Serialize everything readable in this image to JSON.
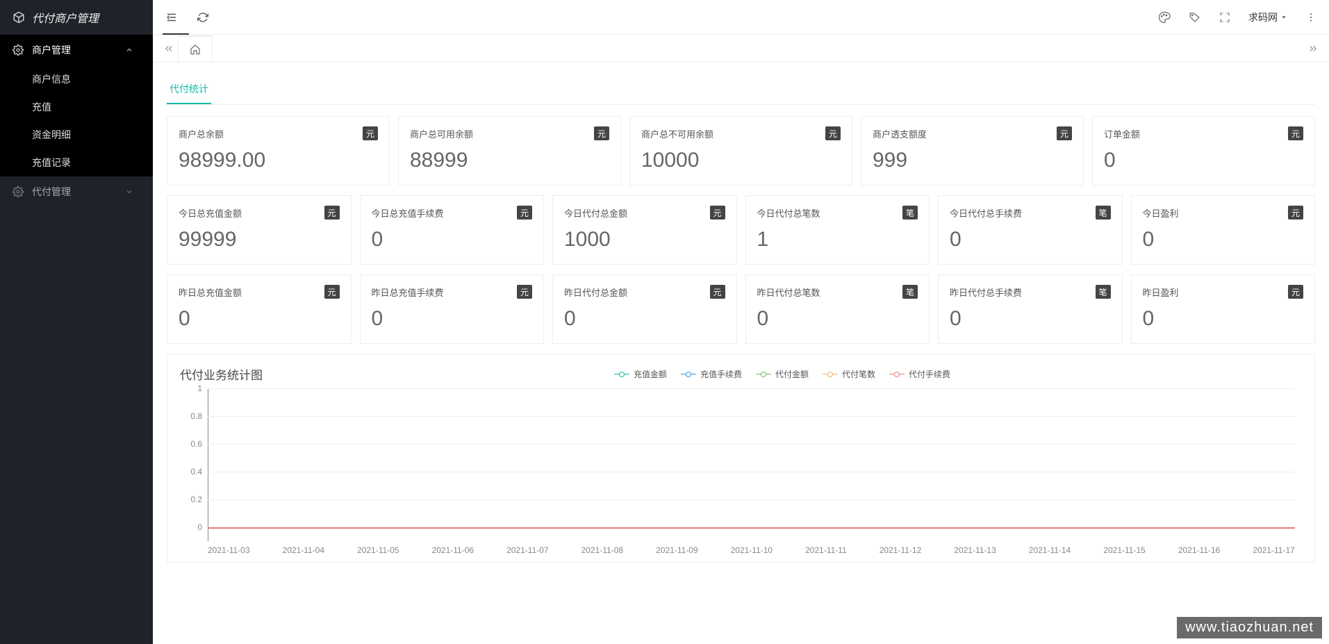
{
  "app_title": "代付商户管理",
  "sidebar": {
    "menu1": {
      "label": "商户管理",
      "expanded": true,
      "items": [
        "商户信息",
        "充值",
        "资金明细",
        "充值记录"
      ]
    },
    "menu2": {
      "label": "代付管理",
      "expanded": false
    }
  },
  "topbar": {
    "user": "求码网"
  },
  "subtab": "代付统计",
  "stats": {
    "row1": [
      {
        "title": "商户总余额",
        "unit": "元",
        "value": "98999.00"
      },
      {
        "title": "商户总可用余额",
        "unit": "元",
        "value": "88999"
      },
      {
        "title": "商户总不可用余额",
        "unit": "元",
        "value": "10000"
      },
      {
        "title": "商户透支额度",
        "unit": "元",
        "value": "999"
      },
      {
        "title": "订单金额",
        "unit": "元",
        "value": "0"
      }
    ],
    "row2": [
      {
        "title": "今日总充值金额",
        "unit": "元",
        "value": "99999"
      },
      {
        "title": "今日总充值手续费",
        "unit": "元",
        "value": "0"
      },
      {
        "title": "今日代付总金额",
        "unit": "元",
        "value": "1000"
      },
      {
        "title": "今日代付总笔数",
        "unit": "笔",
        "value": "1"
      },
      {
        "title": "今日代付总手续费",
        "unit": "笔",
        "value": "0"
      },
      {
        "title": "今日盈利",
        "unit": "元",
        "value": "0"
      }
    ],
    "row3": [
      {
        "title": "昨日总充值金额",
        "unit": "元",
        "value": "0"
      },
      {
        "title": "昨日总充值手续费",
        "unit": "元",
        "value": "0"
      },
      {
        "title": "昨日代付总金额",
        "unit": "元",
        "value": "0"
      },
      {
        "title": "昨日代付总笔数",
        "unit": "笔",
        "value": "0"
      },
      {
        "title": "昨日代付总手续费",
        "unit": "笔",
        "value": "0"
      },
      {
        "title": "昨日盈利",
        "unit": "元",
        "value": "0"
      }
    ]
  },
  "chart": {
    "title": "代付业务统计图",
    "type": "line",
    "legend": [
      {
        "label": "充值金额",
        "color": "#16baaa"
      },
      {
        "label": "充值手续费",
        "color": "#3398db"
      },
      {
        "label": "代付金额",
        "color": "#6bbf5a"
      },
      {
        "label": "代付笔数",
        "color": "#f2b461"
      },
      {
        "label": "代付手续费",
        "color": "#e87a7a"
      }
    ],
    "y": {
      "min": 0,
      "max": 1,
      "step": 0.2,
      "ticks": [
        "0",
        "0.2",
        "0.4",
        "0.6",
        "0.8",
        "1"
      ]
    },
    "x": [
      "2021-11-03",
      "2021-11-04",
      "2021-11-05",
      "2021-11-06",
      "2021-11-07",
      "2021-11-08",
      "2021-11-09",
      "2021-11-10",
      "2021-11-11",
      "2021-11-12",
      "2021-11-13",
      "2021-11-14",
      "2021-11-15",
      "2021-11-16",
      "2021-11-17"
    ],
    "series_flat_value": 0,
    "grid_color": "#eeeeee",
    "axis_color": "#888888",
    "background_color": "#ffffff"
  },
  "watermark": "www.tiaozhuan.net"
}
